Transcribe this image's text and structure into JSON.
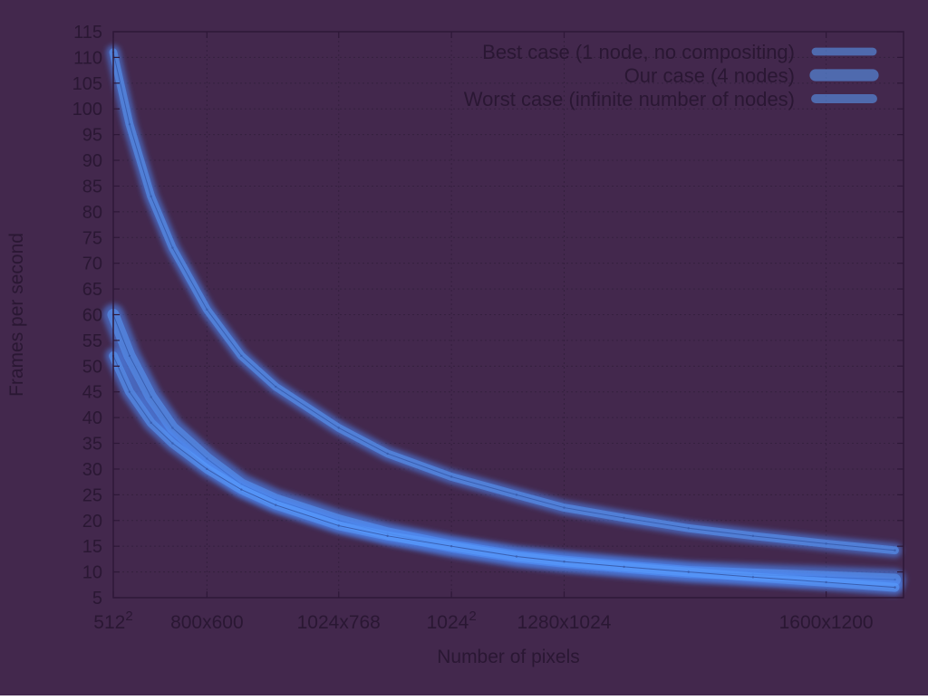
{
  "chart_data": {
    "type": "line",
    "xlabel": "Number of pixels",
    "ylabel": "Frames per second",
    "x_ticks": [
      {
        "label": "512",
        "sup": "2",
        "value": 262144
      },
      {
        "label": "800x600",
        "sup": "",
        "value": 480000
      },
      {
        "label": "1024x768",
        "sup": "",
        "value": 786432
      },
      {
        "label": "1024",
        "sup": "2",
        "value": 1048576
      },
      {
        "label": "1280x1024",
        "sup": "",
        "value": 1310720
      },
      {
        "label": "1600x1200",
        "sup": "",
        "value": 1920000
      }
    ],
    "xlim": [
      262144,
      2100000
    ],
    "ylim": [
      5,
      115
    ],
    "y_ticks": [
      5,
      10,
      15,
      20,
      25,
      30,
      35,
      40,
      45,
      50,
      55,
      60,
      65,
      70,
      75,
      80,
      85,
      90,
      95,
      100,
      105,
      110,
      115
    ],
    "grid": true,
    "legend_position": "top-right",
    "series": [
      {
        "name": "Best case (1 node, no compositing)",
        "x": [
          262144,
          300000,
          350000,
          400000,
          480000,
          560000,
          640000,
          786432,
          900000,
          1048576,
          1200000,
          1310720,
          1450000,
          1600000,
          1750000,
          1920000,
          2080000
        ],
        "y": [
          111,
          97,
          83,
          73,
          61,
          52,
          46,
          38,
          33,
          28.5,
          25,
          22.5,
          20.5,
          18.5,
          17,
          15.5,
          14.2
        ]
      },
      {
        "name": "Our case (4 nodes)",
        "x": [
          262144,
          300000,
          350000,
          400000,
          480000,
          560000,
          640000,
          786432,
          900000,
          1048576,
          1200000,
          1310720,
          1450000,
          1600000,
          1750000,
          1920000,
          2080000
        ],
        "y": [
          60,
          52,
          44,
          38,
          32,
          27,
          24,
          20,
          17.5,
          15,
          13,
          12,
          11,
          10,
          9.5,
          9,
          8.5
        ]
      },
      {
        "name": "Worst case (infinite number of nodes)",
        "x": [
          262144,
          300000,
          350000,
          400000,
          480000,
          560000,
          640000,
          786432,
          900000,
          1048576,
          1200000,
          1310720,
          1450000,
          1600000,
          1750000,
          1920000,
          2080000
        ],
        "y": [
          52,
          45,
          39,
          35,
          30,
          26,
          23,
          19,
          17,
          15,
          13,
          12,
          11,
          10,
          9,
          8,
          7
        ]
      }
    ]
  },
  "colors": {
    "background": "#43284d",
    "plot_border": "#2e1838",
    "grid": "#35203f",
    "text": "#2a1733",
    "series_glow": "#4a8cff",
    "series_core": "#5aa0ff",
    "series_line": "#3a5fb0"
  }
}
